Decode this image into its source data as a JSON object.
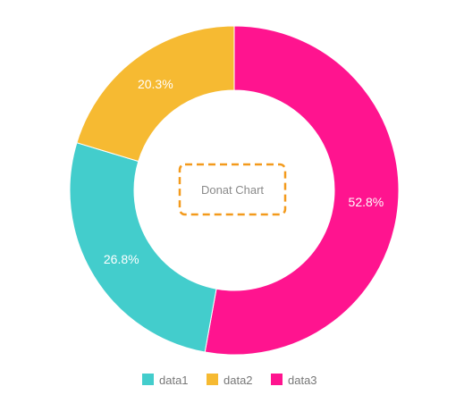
{
  "chart_data": {
    "type": "pie",
    "subtype": "donut",
    "title": "Donat Chart",
    "categories": [
      "data1",
      "data2",
      "data3"
    ],
    "values": [
      26.8,
      20.3,
      52.8
    ],
    "labels": [
      "26.8%",
      "20.3%",
      "52.8%"
    ],
    "colors": [
      "#43CDCC",
      "#F6BA32",
      "#FF148F"
    ],
    "legend": {
      "position": "bottom",
      "entries": [
        "data1",
        "data2",
        "data3"
      ]
    }
  }
}
